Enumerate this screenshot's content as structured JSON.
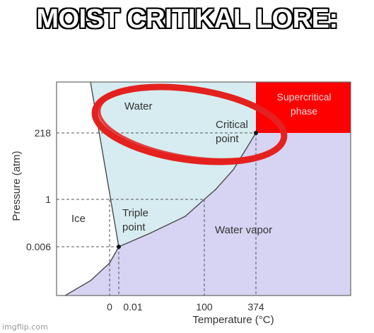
{
  "caption": "MOIST CRITIKAL LORE:",
  "diagram": {
    "regions": {
      "water": "Water",
      "ice": "Ice",
      "water_vapor": "Water vapor",
      "supercritical_line1": "Supercritical",
      "supercritical_line2": "phase"
    },
    "points": {
      "critical_line1": "Critical",
      "critical_line2": "point",
      "triple_line1": "Triple",
      "triple_line2": "point"
    },
    "y_axis": {
      "label": "Pressure (atm)",
      "ticks": [
        "218",
        "1",
        "0.006"
      ]
    },
    "x_axis": {
      "label": "Temperature (°C)",
      "ticks": [
        "0",
        "0.01",
        "100",
        "374"
      ]
    },
    "colors": {
      "water": "#d6ecf0",
      "vapor": "#d6d3f3",
      "supercritical": "#ff0000",
      "circle": "#e4211f"
    }
  },
  "watermark": "imgflip.com"
}
